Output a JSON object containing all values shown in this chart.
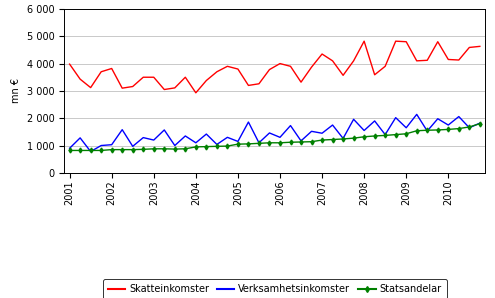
{
  "ylabel": "mn €",
  "ylim": [
    0,
    6000
  ],
  "yticks": [
    0,
    1000,
    2000,
    3000,
    4000,
    5000,
    6000
  ],
  "ytick_labels": [
    "0",
    "1 000",
    "2 000",
    "3 000",
    "4 000",
    "5 000",
    "6 000"
  ],
  "year_labels": [
    "2001",
    "2002",
    "2003",
    "2004",
    "2005",
    "2006",
    "2007",
    "2008",
    "2009",
    "2010"
  ],
  "skatteinkomster": [
    3980,
    3430,
    3120,
    3700,
    3820,
    3100,
    3160,
    3500,
    3500,
    3050,
    3110,
    3500,
    2930,
    3380,
    3700,
    3900,
    3800,
    3200,
    3260,
    3780,
    4000,
    3900,
    3320,
    3870,
    4350,
    4100,
    3570,
    4100,
    4820,
    3590,
    3900,
    4820,
    4800,
    4100,
    4120,
    4800,
    4150,
    4130,
    4590,
    4630
  ],
  "verksamhetsinkomster": [
    900,
    1280,
    780,
    1000,
    1030,
    1580,
    970,
    1290,
    1200,
    1570,
    1000,
    1350,
    1100,
    1420,
    1040,
    1300,
    1150,
    1860,
    1100,
    1460,
    1300,
    1730,
    1170,
    1520,
    1450,
    1750,
    1260,
    1960,
    1550,
    1900,
    1400,
    2020,
    1650,
    2140,
    1530,
    1980,
    1750,
    2060,
    1650,
    1820
  ],
  "statsandelar": [
    820,
    820,
    820,
    820,
    850,
    850,
    850,
    860,
    880,
    880,
    870,
    880,
    950,
    960,
    970,
    980,
    1050,
    1060,
    1080,
    1100,
    1100,
    1120,
    1130,
    1140,
    1200,
    1220,
    1240,
    1270,
    1320,
    1350,
    1370,
    1400,
    1430,
    1540,
    1560,
    1570,
    1590,
    1620,
    1680,
    1800
  ],
  "skatte_color": "#FF0000",
  "verksamhet_color": "#0000FF",
  "stats_color": "#008000",
  "bg_color": "#FFFFFF",
  "grid_color": "#C0C0C0",
  "legend_labels": [
    "Skatteinkomster",
    "Verksamhetsinkomster",
    "Statsandelar"
  ],
  "tick_fontsize": 7,
  "legend_fontsize": 7
}
